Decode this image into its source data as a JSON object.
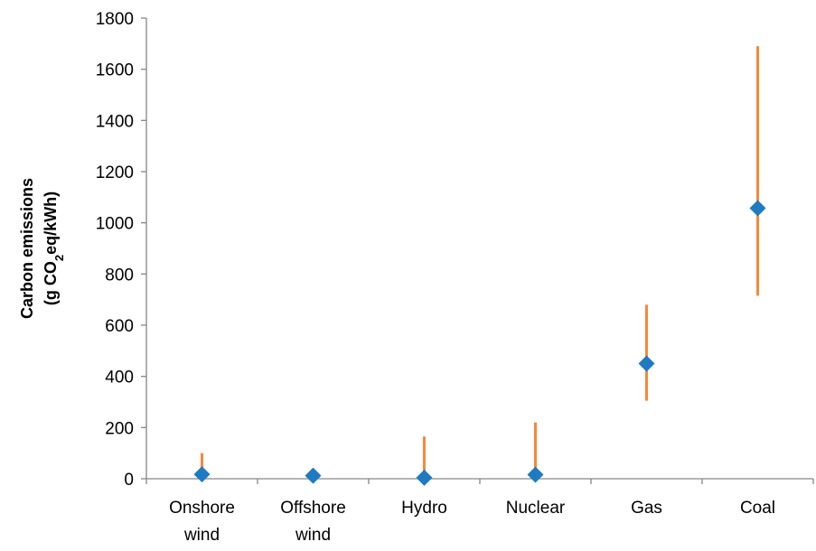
{
  "chart_data": {
    "type": "scatter",
    "categories": [
      [
        "Onshore",
        "wind"
      ],
      [
        "Offshore",
        "wind"
      ],
      [
        "Hydro"
      ],
      [
        "Nuclear"
      ],
      [
        "Gas"
      ],
      [
        "Coal"
      ]
    ],
    "series": [
      {
        "kind": "point",
        "values": [
          17,
          12,
          4,
          16,
          450,
          1057
        ],
        "color": "#1F7BC1",
        "marker": "diamond"
      },
      {
        "kind": "range",
        "low": [
          0,
          0,
          0,
          0,
          305,
          715
        ],
        "high": [
          100,
          0,
          165,
          220,
          680,
          1690
        ],
        "color": "#F7883B"
      }
    ],
    "ylabel_line1": "Carbon emissions",
    "ylabel_line2_prefix": "(g CO",
    "ylabel_line2_sub": "2",
    "ylabel_line2_suffix": "eq/kWh)",
    "ylim": [
      0,
      1800
    ],
    "yticks": [
      0,
      200,
      400,
      600,
      800,
      1000,
      1200,
      1400,
      1600,
      1800
    ],
    "grid": false,
    "legend": "none"
  }
}
